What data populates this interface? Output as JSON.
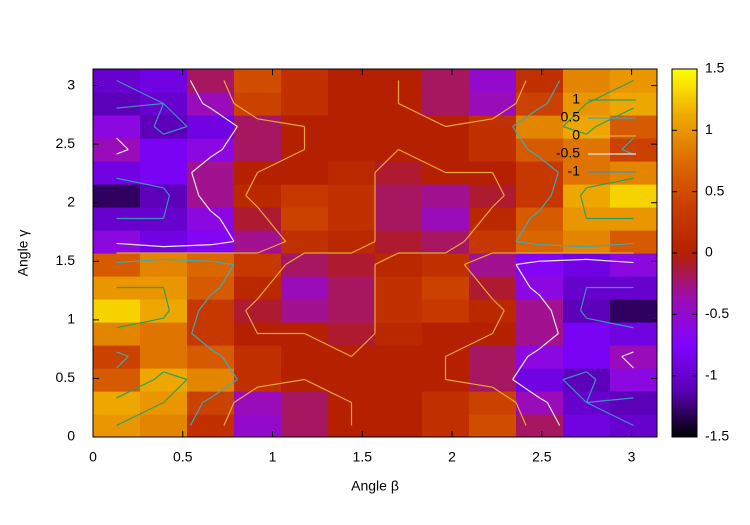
{
  "chart_data": {
    "type": "heatmap",
    "x_label": "Angle β",
    "y_label": "Angle γ",
    "xlim": [
      0,
      3.1416
    ],
    "ylim": [
      0,
      3.1416
    ],
    "xticks": [
      0,
      0.5,
      1,
      1.5,
      2,
      2.5,
      3
    ],
    "yticks": [
      0,
      0.5,
      1,
      1.5,
      2,
      2.5,
      3
    ],
    "cblim": [
      -1.5,
      1.5
    ],
    "cbticks": [
      -1.5,
      -1,
      -0.5,
      0,
      0.5,
      1,
      1.5
    ],
    "colormap": [
      "#000000",
      "#5a00b4",
      "#8004ff",
      "#9c0db4",
      "#b42000",
      "#ca3e00",
      "#dd6c00",
      "#efab00",
      "#ffff00"
    ],
    "z": [
      [
        1.0,
        0.9,
        0.2,
        -0.5,
        -0.2,
        0,
        0,
        0.2,
        0.5,
        -0.2,
        -0.9,
        -1.0
      ],
      [
        1.1,
        1.0,
        0.4,
        -0.4,
        -0.2,
        0,
        0,
        0.2,
        0.4,
        -0.4,
        -1.0,
        -1.1
      ],
      [
        0.6,
        1.1,
        0.9,
        0.2,
        0,
        0,
        0,
        0,
        -0.2,
        -0.9,
        -1.1,
        -0.6
      ],
      [
        0.4,
        0.8,
        0.6,
        0.2,
        0,
        0,
        0,
        0,
        -0.2,
        -0.6,
        -0.8,
        -0.4
      ],
      [
        0.9,
        0.8,
        0.3,
        0,
        0,
        -0.1,
        0.1,
        0,
        0,
        -0.3,
        -0.8,
        -0.9
      ],
      [
        1.3,
        1.1,
        0.3,
        -0.1,
        -0.3,
        -0.2,
        0.2,
        0.3,
        0.1,
        -0.3,
        -1.1,
        -1.3
      ],
      [
        1.0,
        1.0,
        0.6,
        0.1,
        -0.4,
        -0.2,
        0.2,
        0.4,
        -0.1,
        -0.6,
        -1.0,
        -1.0
      ],
      [
        0.6,
        0.9,
        0.7,
        0.3,
        -0.2,
        -0.1,
        0.1,
        0.2,
        -0.3,
        -0.7,
        -0.9,
        -0.6
      ],
      [
        -0.6,
        -0.9,
        -0.7,
        -0.3,
        0.2,
        0.1,
        -0.1,
        -0.2,
        0.3,
        0.7,
        0.9,
        0.6
      ],
      [
        -1.0,
        -1.0,
        -0.6,
        -0.1,
        0.4,
        0.2,
        -0.2,
        -0.4,
        0.1,
        0.6,
        1.0,
        1.0
      ],
      [
        -1.3,
        -1.1,
        -0.3,
        0.1,
        0.3,
        0.2,
        -0.2,
        -0.3,
        -0.1,
        0.3,
        1.1,
        1.3
      ],
      [
        -0.9,
        -0.8,
        -0.3,
        0,
        0,
        0.1,
        -0.1,
        0,
        0,
        0.3,
        0.8,
        0.9
      ],
      [
        -0.4,
        -0.8,
        -0.6,
        -0.2,
        0,
        0,
        0,
        0,
        0.2,
        0.6,
        0.8,
        0.4
      ],
      [
        -0.6,
        -1.1,
        -0.9,
        -0.2,
        0,
        0,
        0,
        0,
        0.2,
        0.9,
        1.1,
        0.6
      ],
      [
        -1.1,
        -1.0,
        -0.4,
        0.4,
        0.2,
        0,
        0,
        -0.2,
        -0.4,
        0.4,
        1.0,
        1.1
      ],
      [
        -1.0,
        -0.9,
        -0.2,
        0.5,
        0.2,
        0,
        0,
        -0.2,
        -0.5,
        0.2,
        0.9,
        1.0
      ]
    ],
    "contour_levels": [
      1,
      0.5,
      0,
      -0.5,
      -1
    ],
    "contour_colors": [
      "#2aa060",
      "#40a8b8",
      "#e8a838",
      "#e8e8e8",
      "#4090c0"
    ]
  }
}
